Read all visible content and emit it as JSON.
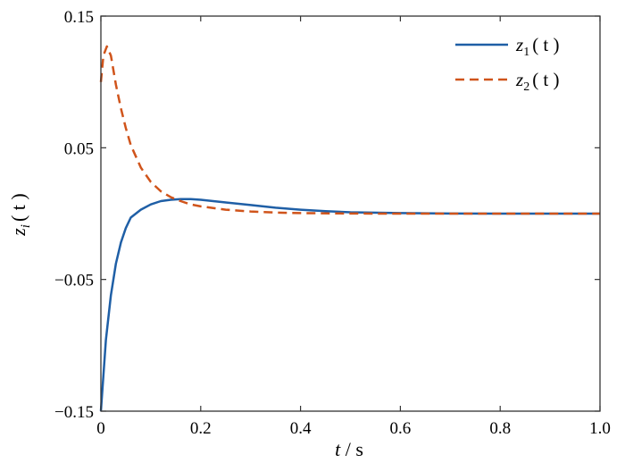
{
  "chart_data": {
    "type": "line",
    "title": "",
    "xlabel": "t / s",
    "ylabel": "z_i ( t )",
    "xlim": [
      0,
      1.0
    ],
    "ylim": [
      -0.15,
      0.15
    ],
    "xticks": [
      0,
      0.2,
      0.4,
      0.6,
      0.8,
      1.0
    ],
    "xtick_labels": [
      "0",
      "0.2",
      "0.4",
      "0.6",
      "0.8",
      "1.0"
    ],
    "yticks": [
      -0.15,
      -0.05,
      0.05,
      0.15
    ],
    "ytick_labels": [
      "−0.15",
      "−0.05",
      "0.05",
      "0.15"
    ],
    "grid": false,
    "legend_position": "top-right",
    "series": [
      {
        "name": "z1 ( t )",
        "color": "#1f5fa6",
        "style": "solid",
        "x": [
          0,
          0.01,
          0.02,
          0.03,
          0.04,
          0.05,
          0.06,
          0.08,
          0.1,
          0.12,
          0.14,
          0.16,
          0.18,
          0.2,
          0.25,
          0.3,
          0.35,
          0.4,
          0.45,
          0.5,
          0.6,
          0.7,
          0.8,
          0.9,
          1.0
        ],
        "values": [
          -0.15,
          -0.096,
          -0.062,
          -0.038,
          -0.022,
          -0.011,
          -0.003,
          0.003,
          0.007,
          0.0095,
          0.0105,
          0.011,
          0.011,
          0.0105,
          0.0085,
          0.0065,
          0.0045,
          0.003,
          0.0018,
          0.001,
          0.0004,
          0.0001,
          0.0,
          0.0,
          0.0
        ]
      },
      {
        "name": "z2 ( t )",
        "color": "#d0541b",
        "style": "dashed",
        "x": [
          0,
          0.005,
          0.012,
          0.02,
          0.03,
          0.04,
          0.05,
          0.06,
          0.08,
          0.1,
          0.12,
          0.14,
          0.16,
          0.18,
          0.2,
          0.25,
          0.3,
          0.35,
          0.4,
          0.5,
          0.6,
          0.7,
          0.8,
          0.9,
          1.0
        ],
        "values": [
          0.1,
          0.12,
          0.127,
          0.12,
          0.098,
          0.08,
          0.065,
          0.052,
          0.035,
          0.024,
          0.017,
          0.0125,
          0.0095,
          0.007,
          0.0055,
          0.003,
          0.0016,
          0.0008,
          0.0004,
          0.0001,
          0.0,
          0.0,
          0.0,
          0.0,
          0.0
        ]
      }
    ]
  },
  "legend": {
    "items": [
      {
        "base": "z",
        "sub": "1",
        "tail": "( t )"
      },
      {
        "base": "z",
        "sub": "2",
        "tail": "( t )"
      }
    ]
  },
  "axis_titles": {
    "x_var": "t",
    "x_unit": " / s",
    "y_base": "z",
    "y_sub": "i",
    "y_tail": "( t )"
  }
}
